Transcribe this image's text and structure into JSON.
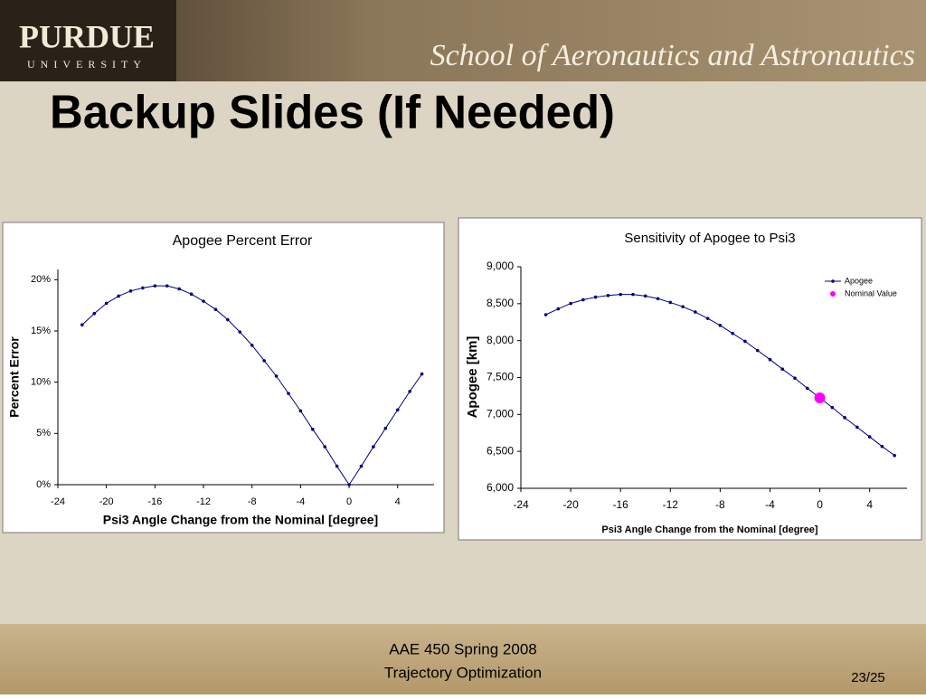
{
  "header": {
    "logo": "PURDUE",
    "logo_sub": "UNIVERSITY",
    "school": "School of Aeronautics and Astronautics"
  },
  "slide_title": "Backup Slides (If Needed)",
  "chart_data": [
    {
      "type": "line",
      "title": "Apogee Percent Error",
      "x_label": "Psi3 Angle Change from the Nominal [degree]",
      "y_label": "Percent Error",
      "xlim": [
        -24,
        7
      ],
      "xticks": [
        -24,
        -20,
        -16,
        -12,
        -8,
        -4,
        0,
        4
      ],
      "ylim": [
        0,
        21
      ],
      "yticks": [
        {
          "value": 0,
          "label": "0%"
        },
        {
          "value": 5,
          "label": "5%"
        },
        {
          "value": 10,
          "label": "10%"
        },
        {
          "value": 15,
          "label": "15%"
        },
        {
          "value": 20,
          "label": "20%"
        }
      ],
      "series": [
        {
          "color": "#000080",
          "x": [
            -22,
            -21,
            -20,
            -19,
            -18,
            -17,
            -16,
            -15,
            -14,
            -13,
            -12,
            -11,
            -10,
            -9,
            -8,
            -7,
            -6,
            -5,
            -4,
            -3,
            -2,
            -1,
            0,
            1,
            2,
            3,
            4,
            5,
            6
          ],
          "values": [
            15.6,
            16.7,
            17.7,
            18.4,
            18.9,
            19.2,
            19.4,
            19.4,
            19.1,
            18.6,
            17.9,
            17.1,
            16.1,
            14.9,
            13.6,
            12.1,
            10.6,
            8.9,
            7.2,
            5.4,
            3.7,
            1.8,
            0,
            1.8,
            3.7,
            5.5,
            7.3,
            9.1,
            10.8
          ]
        }
      ]
    },
    {
      "type": "line",
      "title": "Sensitivity of Apogee to Psi3",
      "x_label": "Psi3 Angle Change from the Nominal [degree]",
      "y_label": "Apogee [km]",
      "xlim": [
        -24,
        7
      ],
      "xticks": [
        -24,
        -20,
        -16,
        -12,
        -8,
        -4,
        0,
        4
      ],
      "ylim": [
        6000,
        9000
      ],
      "yticks": [
        {
          "value": 6000,
          "label": "6,000"
        },
        {
          "value": 6500,
          "label": "6,500"
        },
        {
          "value": 7000,
          "label": "7,000"
        },
        {
          "value": 7500,
          "label": "7,500"
        },
        {
          "value": 8000,
          "label": "8,000"
        },
        {
          "value": 8500,
          "label": "8,500"
        },
        {
          "value": 9000,
          "label": "9,000"
        }
      ],
      "legend": "top-right",
      "series": [
        {
          "name": "Apogee",
          "color": "#000080",
          "x": [
            -22,
            -21,
            -20,
            -19,
            -18,
            -17,
            -16,
            -15,
            -14,
            -13,
            -12,
            -11,
            -10,
            -9,
            -8,
            -7,
            -6,
            -5,
            -4,
            -3,
            -2,
            -1,
            0,
            1,
            2,
            3,
            4,
            5,
            6
          ],
          "values": [
            8351,
            8430,
            8503,
            8553,
            8589,
            8611,
            8625,
            8625,
            8604,
            8568,
            8517,
            8459,
            8387,
            8300,
            8206,
            8098,
            7990,
            7867,
            7744,
            7614,
            7491,
            7354,
            7224,
            7094,
            6957,
            6827,
            6697,
            6567,
            6444
          ]
        },
        {
          "name": "Nominal Value",
          "color": "#ff00ff",
          "marker": "large",
          "x": [
            0
          ],
          "values": [
            7224
          ]
        }
      ]
    }
  ],
  "footer": {
    "course": "AAE 450 Spring 2008",
    "subtitle": "Trajectory Optimization",
    "page": "23/25"
  }
}
